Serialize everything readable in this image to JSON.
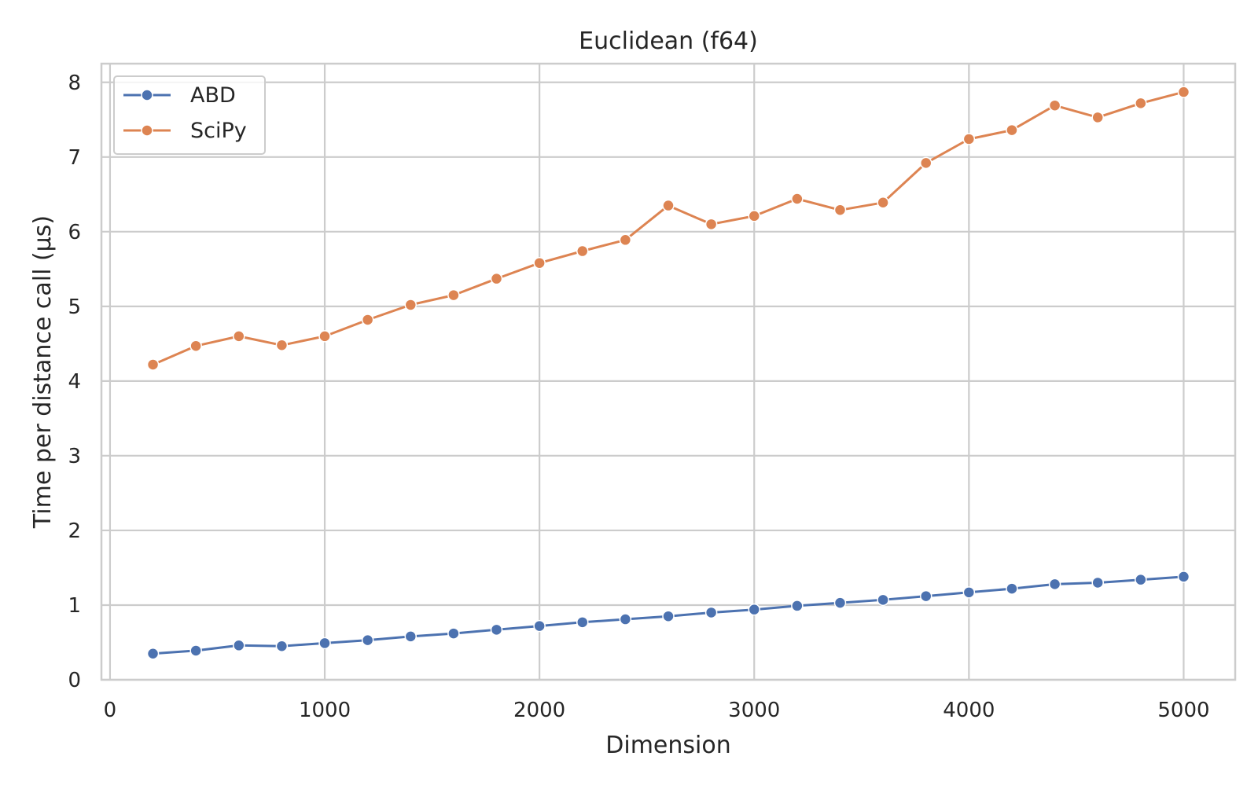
{
  "chart_data": {
    "type": "line",
    "title": "Euclidean (f64)",
    "xlabel": "Dimension",
    "ylabel": "Time per distance call (µs)",
    "xlim": [
      -40,
      5240
    ],
    "ylim": [
      0,
      8.25
    ],
    "x_ticks": [
      0,
      1000,
      2000,
      3000,
      4000,
      5000
    ],
    "y_ticks": [
      0,
      1,
      2,
      3,
      4,
      5,
      6,
      7,
      8
    ],
    "grid": true,
    "legend_position": "top-left",
    "x": [
      200,
      400,
      600,
      800,
      1000,
      1200,
      1400,
      1600,
      1800,
      2000,
      2200,
      2400,
      2600,
      2800,
      3000,
      3200,
      3400,
      3600,
      3800,
      4000,
      4200,
      4400,
      4600,
      4800,
      5000
    ],
    "series": [
      {
        "name": "ABD",
        "color": "#4c72b0",
        "marker": "circle",
        "values": [
          0.35,
          0.39,
          0.46,
          0.45,
          0.49,
          0.53,
          0.58,
          0.62,
          0.67,
          0.72,
          0.77,
          0.81,
          0.85,
          0.9,
          0.94,
          0.99,
          1.03,
          1.07,
          1.12,
          1.17,
          1.22,
          1.28,
          1.3,
          1.34,
          1.38
        ]
      },
      {
        "name": "SciPy",
        "color": "#dd8452",
        "marker": "circle",
        "values": [
          4.22,
          4.47,
          4.6,
          4.48,
          4.6,
          4.82,
          5.02,
          5.15,
          5.37,
          5.58,
          5.74,
          5.89,
          6.35,
          6.1,
          6.21,
          6.44,
          6.29,
          6.39,
          6.92,
          7.24,
          7.36,
          7.69,
          7.53,
          7.72,
          7.87
        ]
      }
    ]
  }
}
